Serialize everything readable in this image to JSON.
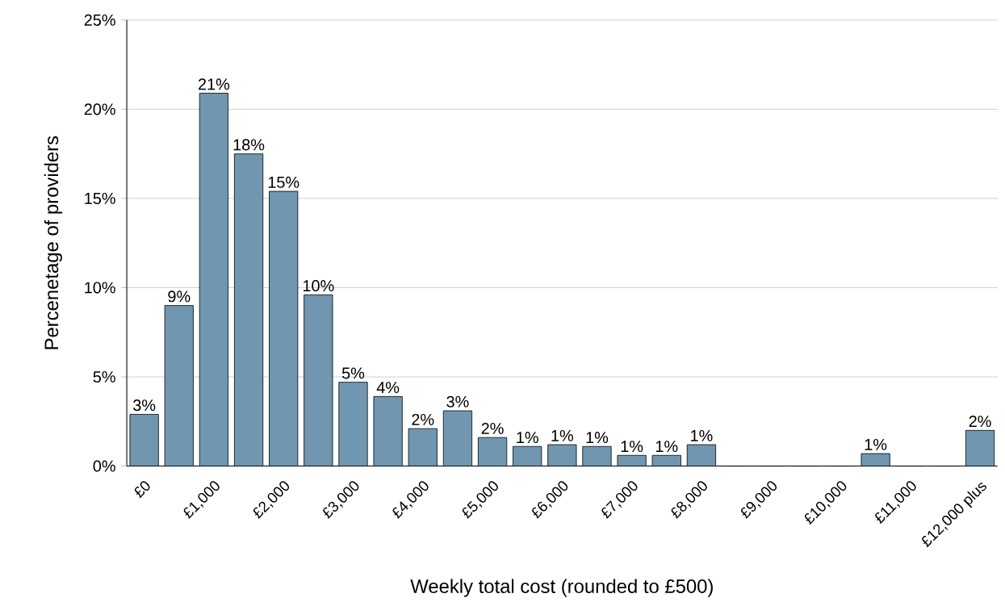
{
  "chart_data": {
    "type": "bar",
    "xlabel": "Weekly total cost (rounded to £500)",
    "ylabel": "Percenetage of providers",
    "categories": [
      "£0",
      null,
      "£1,000",
      null,
      "£2,000",
      null,
      "£3,000",
      null,
      "£4,000",
      null,
      "£5,000",
      null,
      "£6,000",
      null,
      "£7,000",
      null,
      "£8,000",
      null,
      "£9,000",
      null,
      "£10,000",
      null,
      "£11,000",
      null,
      "£12,000 plus"
    ],
    "values": [
      2.9,
      9,
      20.9,
      17.5,
      15.4,
      9.6,
      4.7,
      3.9,
      2.1,
      3.1,
      1.6,
      1.1,
      1.2,
      1.1,
      0.6,
      0.6,
      1.2,
      0,
      0,
      0,
      0,
      0.7,
      0,
      0,
      2.0
    ],
    "value_labels": [
      "3%",
      "9%",
      "21%",
      "18%",
      "15%",
      "10%",
      "5%",
      "4%",
      "2%",
      "3%",
      "2%",
      "1%",
      "1%",
      "1%",
      "1%",
      "1%",
      "1%",
      null,
      null,
      null,
      null,
      "1%",
      null,
      null,
      "2%"
    ],
    "color": "#7096b0",
    "ylim": [
      0,
      25
    ],
    "yticks": [
      {
        "value": 0,
        "label": "0%"
      },
      {
        "value": 5,
        "label": "5%"
      },
      {
        "value": 10,
        "label": "10%"
      },
      {
        "value": 15,
        "label": "15%"
      },
      {
        "value": 20,
        "label": "20%"
      },
      {
        "value": 25,
        "label": "25%"
      }
    ],
    "grid": "y"
  }
}
